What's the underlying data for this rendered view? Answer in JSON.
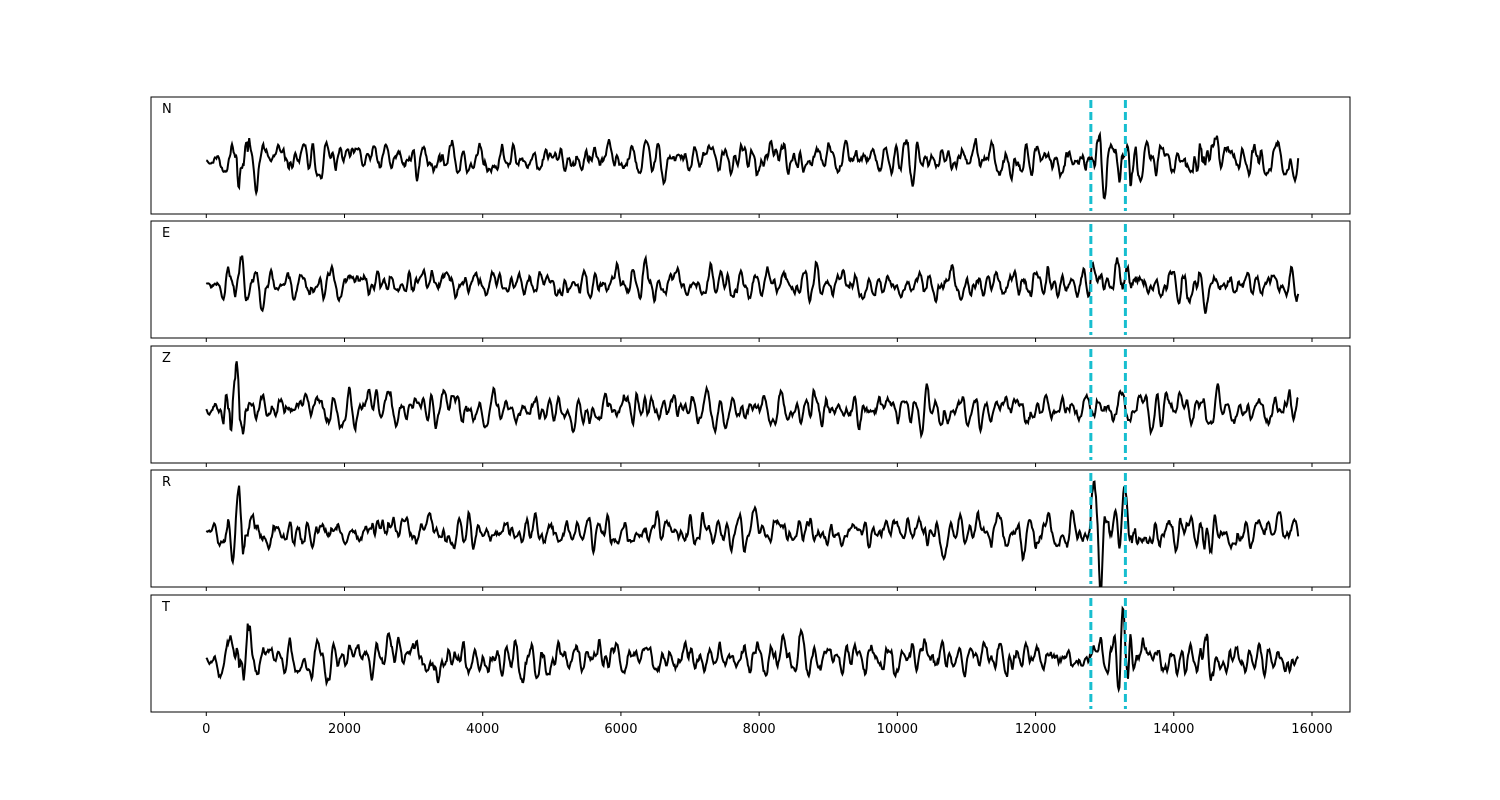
{
  "figure": {
    "background": "#ffffff",
    "trace_color": "#000000",
    "marker_color": "#17becf"
  },
  "chart_data": {
    "type": "line",
    "title": "",
    "xlabel": "",
    "ylabel": "",
    "xlim": [
      -800,
      16550
    ],
    "x_ticks": [
      0,
      2000,
      4000,
      6000,
      8000,
      10000,
      12000,
      14000,
      16000
    ],
    "x_tick_labels": [
      "0",
      "2000",
      "4000",
      "6000",
      "8000",
      "10000",
      "12000",
      "14000",
      "16000"
    ],
    "sample_range": [
      0,
      15800
    ],
    "markers": [
      12800,
      13300
    ],
    "marker_style": "dashed",
    "grid": false,
    "legend": "none",
    "panels": [
      {
        "label": "N",
        "seed": 11,
        "events": [
          [
            560,
            1.0
          ],
          [
            12880,
            0.85
          ],
          [
            13350,
            0.55
          ],
          [
            14400,
            0.5
          ]
        ]
      },
      {
        "label": "E",
        "seed": 23,
        "events": [
          [
            480,
            0.45
          ],
          [
            13320,
            0.8
          ],
          [
            14280,
            0.6
          ]
        ]
      },
      {
        "label": "Z",
        "seed": 37,
        "events": [
          [
            420,
            1.0
          ],
          [
            15600,
            0.35
          ]
        ]
      },
      {
        "label": "R",
        "seed": 51,
        "events": [
          [
            560,
            0.9
          ],
          [
            12900,
            0.85
          ],
          [
            13350,
            0.7
          ],
          [
            14450,
            0.55
          ]
        ]
      },
      {
        "label": "T",
        "seed": 67,
        "events": [
          [
            560,
            0.6
          ],
          [
            13330,
            1.0
          ],
          [
            14500,
            0.6
          ]
        ]
      }
    ]
  }
}
